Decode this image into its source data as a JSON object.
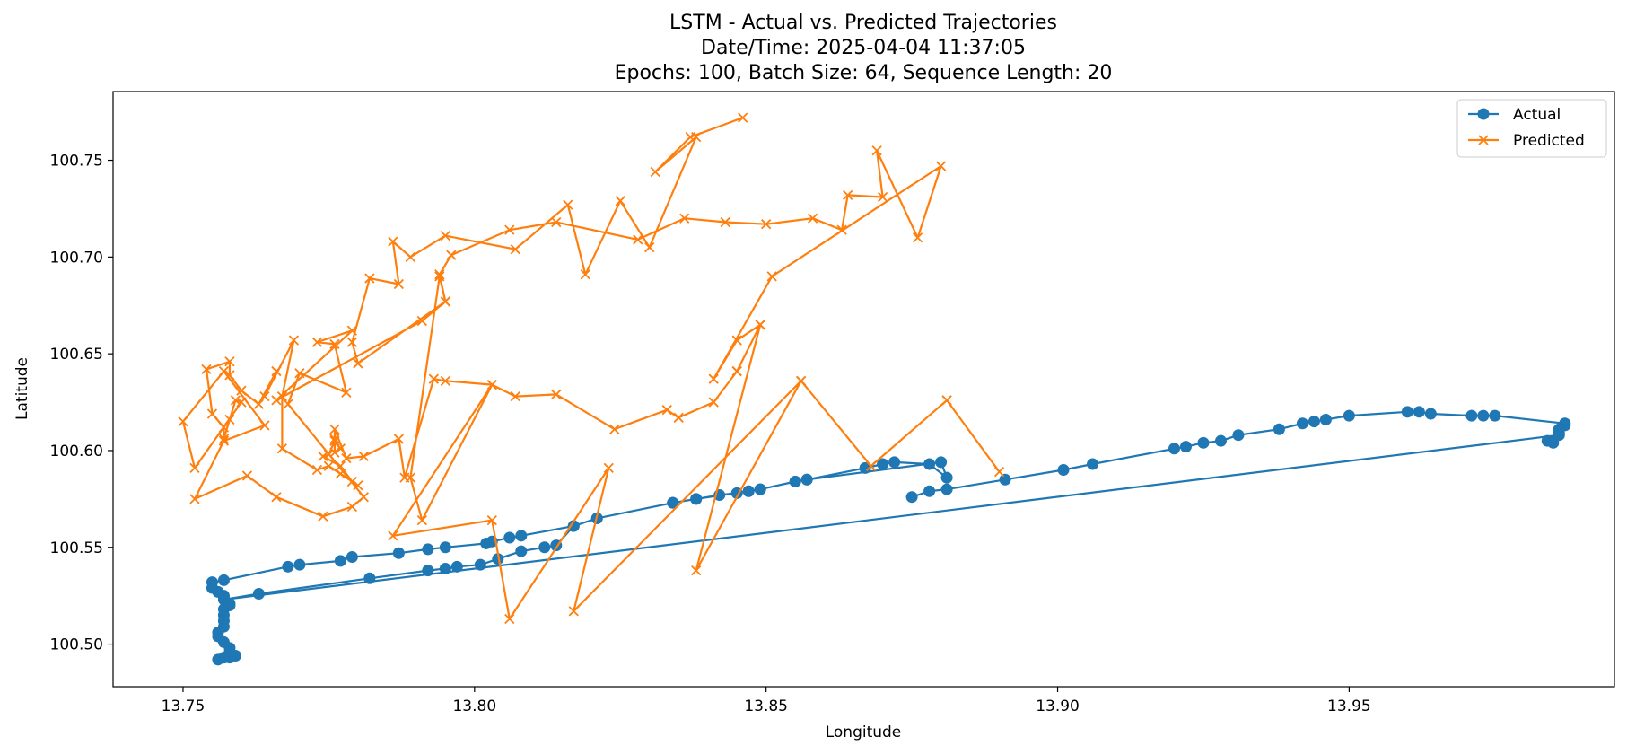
{
  "chart_data": {
    "type": "line",
    "title": "LSTM - Actual vs. Predicted Trajectories",
    "subtitle_lines": [
      "Date/Time: 2025-04-04 11:37:05",
      "Epochs: 100, Batch Size: 64, Sequence Length: 20"
    ],
    "xlabel": "Longitude",
    "ylabel": "Latitude",
    "xlim": [
      13.738,
      13.9955
    ],
    "ylim": [
      100.478,
      100.7855
    ],
    "xticks": [
      13.75,
      13.8,
      13.85,
      13.9,
      13.95
    ],
    "xtick_labels": [
      "13.75",
      "13.80",
      "13.85",
      "13.90",
      "13.95"
    ],
    "yticks": [
      100.5,
      100.55,
      100.6,
      100.65,
      100.7,
      100.75
    ],
    "ytick_labels": [
      "100.50",
      "100.55",
      "100.60",
      "100.65",
      "100.70",
      "100.75"
    ],
    "grid": false,
    "legend_position": "top-right",
    "series": [
      {
        "name": "Actual",
        "color": "#1f77b4",
        "marker": "circle",
        "points": [
          [
            13.875,
            100.576
          ],
          [
            13.878,
            100.579
          ],
          [
            13.881,
            100.58
          ],
          [
            13.891,
            100.585
          ],
          [
            13.901,
            100.59
          ],
          [
            13.906,
            100.593
          ],
          [
            13.92,
            100.601
          ],
          [
            13.922,
            100.602
          ],
          [
            13.925,
            100.604
          ],
          [
            13.928,
            100.605
          ],
          [
            13.931,
            100.608
          ],
          [
            13.938,
            100.611
          ],
          [
            13.942,
            100.614
          ],
          [
            13.944,
            100.615
          ],
          [
            13.946,
            100.616
          ],
          [
            13.95,
            100.618
          ],
          [
            13.96,
            100.62
          ],
          [
            13.962,
            100.62
          ],
          [
            13.964,
            100.619
          ],
          [
            13.971,
            100.618
          ],
          [
            13.973,
            100.618
          ],
          [
            13.975,
            100.618
          ],
          [
            13.987,
            100.614
          ],
          [
            13.987,
            100.613
          ],
          [
            13.986,
            100.611
          ],
          [
            13.986,
            100.609
          ],
          [
            13.984,
            100.605
          ],
          [
            13.985,
            100.604
          ],
          [
            13.986,
            100.608
          ],
          [
            13.757,
            100.523
          ],
          [
            13.763,
            100.526
          ],
          [
            13.782,
            100.534
          ],
          [
            13.792,
            100.538
          ],
          [
            13.795,
            100.539
          ],
          [
            13.797,
            100.54
          ],
          [
            13.801,
            100.541
          ],
          [
            13.804,
            100.544
          ],
          [
            13.808,
            100.548
          ],
          [
            13.812,
            100.55
          ],
          [
            13.814,
            100.551
          ],
          [
            13.817,
            100.561
          ],
          [
            13.821,
            100.565
          ],
          [
            13.834,
            100.573
          ],
          [
            13.838,
            100.575
          ],
          [
            13.842,
            100.577
          ],
          [
            13.845,
            100.578
          ],
          [
            13.847,
            100.579
          ],
          [
            13.849,
            100.58
          ],
          [
            13.855,
            100.584
          ],
          [
            13.857,
            100.585
          ],
          [
            13.867,
            100.591
          ],
          [
            13.87,
            100.593
          ],
          [
            13.872,
            100.594
          ],
          [
            13.878,
            100.593
          ],
          [
            13.881,
            100.586
          ],
          [
            13.88,
            100.594
          ],
          [
            13.857,
            100.585
          ],
          [
            13.855,
            100.584
          ],
          [
            13.849,
            100.58
          ],
          [
            13.847,
            100.579
          ],
          [
            13.838,
            100.575
          ],
          [
            13.834,
            100.573
          ],
          [
            13.821,
            100.565
          ],
          [
            13.817,
            100.561
          ],
          [
            13.808,
            100.556
          ],
          [
            13.806,
            100.555
          ],
          [
            13.803,
            100.553
          ],
          [
            13.802,
            100.552
          ],
          [
            13.795,
            100.55
          ],
          [
            13.792,
            100.549
          ],
          [
            13.787,
            100.547
          ],
          [
            13.779,
            100.545
          ],
          [
            13.777,
            100.543
          ],
          [
            13.77,
            100.541
          ],
          [
            13.768,
            100.54
          ],
          [
            13.757,
            100.533
          ],
          [
            13.755,
            100.532
          ],
          [
            13.755,
            100.529
          ],
          [
            13.756,
            100.527
          ],
          [
            13.757,
            100.525
          ],
          [
            13.757,
            100.524
          ],
          [
            13.758,
            100.521
          ],
          [
            13.758,
            100.52
          ],
          [
            13.757,
            100.518
          ],
          [
            13.757,
            100.515
          ],
          [
            13.757,
            100.512
          ],
          [
            13.757,
            100.509
          ],
          [
            13.756,
            100.506
          ],
          [
            13.756,
            100.504
          ],
          [
            13.757,
            100.501
          ],
          [
            13.758,
            100.498
          ],
          [
            13.758,
            100.496
          ],
          [
            13.759,
            100.494
          ],
          [
            13.758,
            100.493
          ],
          [
            13.757,
            100.493
          ],
          [
            13.756,
            100.492
          ],
          [
            13.757,
            100.493
          ]
        ]
      },
      {
        "name": "Predicted",
        "color": "#ff7f0e",
        "marker": "x",
        "points": [
          [
            13.846,
            100.772
          ],
          [
            13.837,
            100.762
          ],
          [
            13.831,
            100.744
          ],
          [
            13.838,
            100.762
          ],
          [
            13.83,
            100.705
          ],
          [
            13.825,
            100.729
          ],
          [
            13.819,
            100.691
          ],
          [
            13.816,
            100.727
          ],
          [
            13.807,
            100.704
          ],
          [
            13.795,
            100.711
          ],
          [
            13.789,
            100.7
          ],
          [
            13.786,
            100.708
          ],
          [
            13.787,
            100.686
          ],
          [
            13.782,
            100.689
          ],
          [
            13.779,
            100.656
          ],
          [
            13.78,
            100.645
          ],
          [
            13.795,
            100.677
          ],
          [
            13.794,
            100.691
          ],
          [
            13.796,
            100.701
          ],
          [
            13.806,
            100.714
          ],
          [
            13.814,
            100.718
          ],
          [
            13.828,
            100.709
          ],
          [
            13.836,
            100.72
          ],
          [
            13.843,
            100.718
          ],
          [
            13.85,
            100.717
          ],
          [
            13.858,
            100.72
          ],
          [
            13.863,
            100.714
          ],
          [
            13.864,
            100.732
          ],
          [
            13.87,
            100.731
          ],
          [
            13.869,
            100.755
          ],
          [
            13.876,
            100.71
          ],
          [
            13.88,
            100.747
          ],
          [
            13.851,
            100.69
          ],
          [
            13.841,
            100.637
          ],
          [
            13.845,
            100.657
          ],
          [
            13.849,
            100.665
          ],
          [
            13.845,
            100.641
          ],
          [
            13.841,
            100.625
          ],
          [
            13.835,
            100.617
          ],
          [
            13.833,
            100.621
          ],
          [
            13.824,
            100.611
          ],
          [
            13.814,
            100.629
          ],
          [
            13.807,
            100.628
          ],
          [
            13.803,
            100.634
          ],
          [
            13.795,
            100.636
          ],
          [
            13.793,
            100.637
          ],
          [
            13.788,
            100.586
          ],
          [
            13.787,
            100.606
          ],
          [
            13.781,
            100.597
          ],
          [
            13.778,
            100.596
          ],
          [
            13.776,
            100.611
          ],
          [
            13.776,
            100.606
          ],
          [
            13.776,
            100.599
          ],
          [
            13.777,
            100.601
          ],
          [
            13.776,
            100.605
          ],
          [
            13.775,
            100.598
          ],
          [
            13.774,
            100.597
          ],
          [
            13.777,
            100.592
          ],
          [
            13.779,
            100.584
          ],
          [
            13.78,
            100.582
          ],
          [
            13.777,
            100.588
          ],
          [
            13.775,
            100.592
          ],
          [
            13.773,
            100.59
          ],
          [
            13.767,
            100.601
          ],
          [
            13.767,
            100.628
          ],
          [
            13.769,
            100.657
          ],
          [
            13.764,
            100.628
          ],
          [
            13.766,
            100.641
          ],
          [
            13.763,
            100.624
          ],
          [
            13.76,
            100.631
          ],
          [
            13.758,
            100.639
          ],
          [
            13.758,
            100.646
          ],
          [
            13.754,
            100.642
          ],
          [
            13.755,
            100.619
          ],
          [
            13.757,
            100.612
          ],
          [
            13.757,
            100.606
          ],
          [
            13.758,
            100.616
          ],
          [
            13.759,
            100.626
          ],
          [
            13.76,
            100.625
          ],
          [
            13.752,
            100.591
          ],
          [
            13.75,
            100.615
          ],
          [
            13.757,
            100.641
          ],
          [
            13.764,
            100.613
          ],
          [
            13.757,
            100.605
          ],
          [
            13.752,
            100.575
          ],
          [
            13.761,
            100.587
          ],
          [
            13.766,
            100.576
          ],
          [
            13.774,
            100.566
          ],
          [
            13.779,
            100.571
          ],
          [
            13.781,
            100.576
          ],
          [
            13.768,
            100.624
          ],
          [
            13.77,
            100.64
          ],
          [
            13.778,
            100.63
          ],
          [
            13.776,
            100.655
          ],
          [
            13.773,
            100.656
          ],
          [
            13.779,
            100.662
          ],
          [
            13.766,
            100.626
          ],
          [
            13.791,
            100.667
          ],
          [
            13.795,
            100.677
          ],
          [
            13.794,
            100.69
          ],
          [
            13.789,
            100.586
          ],
          [
            13.791,
            100.564
          ],
          [
            13.803,
            100.634
          ],
          [
            13.786,
            100.556
          ],
          [
            13.803,
            100.564
          ],
          [
            13.806,
            100.513
          ],
          [
            13.823,
            100.591
          ],
          [
            13.817,
            100.517
          ],
          [
            13.856,
            100.636
          ],
          [
            13.868,
            100.592
          ],
          [
            13.881,
            100.626
          ],
          [
            13.89,
            100.589
          ],
          [
            13.881,
            100.626
          ],
          [
            13.868,
            100.592
          ],
          [
            13.856,
            100.636
          ],
          [
            13.838,
            100.538
          ],
          [
            13.849,
            100.665
          ],
          [
            13.845,
            100.641
          ]
        ]
      }
    ]
  }
}
